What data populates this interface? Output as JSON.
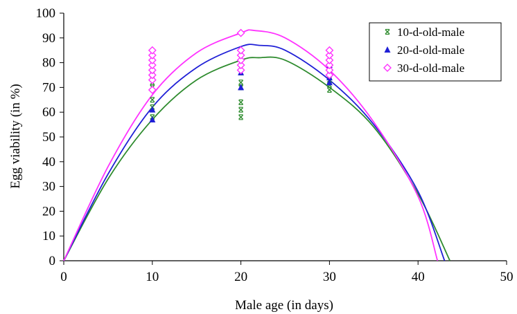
{
  "chart_data": {
    "type": "scatter",
    "xlabel": "Male age (in days)",
    "ylabel": "Egg viability (in %)",
    "xlim": [
      0,
      50
    ],
    "ylim": [
      0,
      100
    ],
    "x_ticks": [
      0,
      10,
      20,
      30,
      40,
      50
    ],
    "y_ticks": [
      0,
      10,
      20,
      30,
      40,
      50,
      60,
      70,
      80,
      90,
      100
    ],
    "grid": false,
    "legend_position": "top-right",
    "series": [
      {
        "name": "10-d-old-male",
        "marker": "asterisk",
        "color": "#2e8b2e",
        "points": [
          [
            10,
            58
          ],
          [
            10,
            62
          ],
          [
            10,
            65
          ],
          [
            10,
            70
          ],
          [
            10,
            72
          ],
          [
            10,
            75
          ],
          [
            20,
            58
          ],
          [
            20,
            61
          ],
          [
            20,
            64
          ],
          [
            20,
            70
          ],
          [
            20,
            72
          ],
          [
            20,
            76
          ],
          [
            20,
            80
          ],
          [
            30,
            69
          ],
          [
            30,
            71
          ],
          [
            30,
            73
          ],
          [
            30,
            75
          ]
        ],
        "trend": [
          [
            0,
            0
          ],
          [
            5,
            33
          ],
          [
            10,
            57
          ],
          [
            15,
            73
          ],
          [
            20,
            81
          ],
          [
            22,
            82
          ],
          [
            25,
            81
          ],
          [
            30,
            70
          ],
          [
            35,
            54
          ],
          [
            40,
            27
          ],
          [
            43.6,
            0
          ]
        ]
      },
      {
        "name": "20-d-old-male",
        "marker": "triangle",
        "color": "#1f1fd6",
        "points": [
          [
            10,
            57
          ],
          [
            10,
            61
          ],
          [
            10,
            76
          ],
          [
            10,
            80
          ],
          [
            10,
            82
          ],
          [
            20,
            70
          ],
          [
            20,
            76
          ],
          [
            20,
            82
          ],
          [
            20,
            84
          ],
          [
            30,
            72
          ],
          [
            30,
            74
          ],
          [
            30,
            79
          ]
        ],
        "trend": [
          [
            0,
            0
          ],
          [
            5,
            35
          ],
          [
            10,
            62
          ],
          [
            15,
            78
          ],
          [
            20,
            86.5
          ],
          [
            22,
            87
          ],
          [
            25,
            85
          ],
          [
            30,
            73
          ],
          [
            35,
            55
          ],
          [
            40,
            28
          ],
          [
            43,
            0
          ]
        ]
      },
      {
        "name": "30-d-old-male",
        "marker": "diamond",
        "color": "#ff33ff",
        "points": [
          [
            10,
            69
          ],
          [
            10,
            73
          ],
          [
            10,
            75
          ],
          [
            10,
            77
          ],
          [
            10,
            79
          ],
          [
            10,
            81
          ],
          [
            10,
            83
          ],
          [
            10,
            85
          ],
          [
            20,
            77
          ],
          [
            20,
            79
          ],
          [
            20,
            81
          ],
          [
            20,
            83
          ],
          [
            20,
            85
          ],
          [
            20,
            92
          ],
          [
            30,
            75
          ],
          [
            30,
            77
          ],
          [
            30,
            79
          ],
          [
            30,
            81
          ],
          [
            30,
            83
          ],
          [
            30,
            85
          ]
        ],
        "trend": [
          [
            0,
            0
          ],
          [
            5,
            38
          ],
          [
            10,
            67
          ],
          [
            15,
            84
          ],
          [
            20,
            92
          ],
          [
            21.5,
            93
          ],
          [
            25,
            90
          ],
          [
            30,
            77
          ],
          [
            35,
            56
          ],
          [
            40,
            26
          ],
          [
            42.2,
            0
          ]
        ]
      }
    ]
  }
}
